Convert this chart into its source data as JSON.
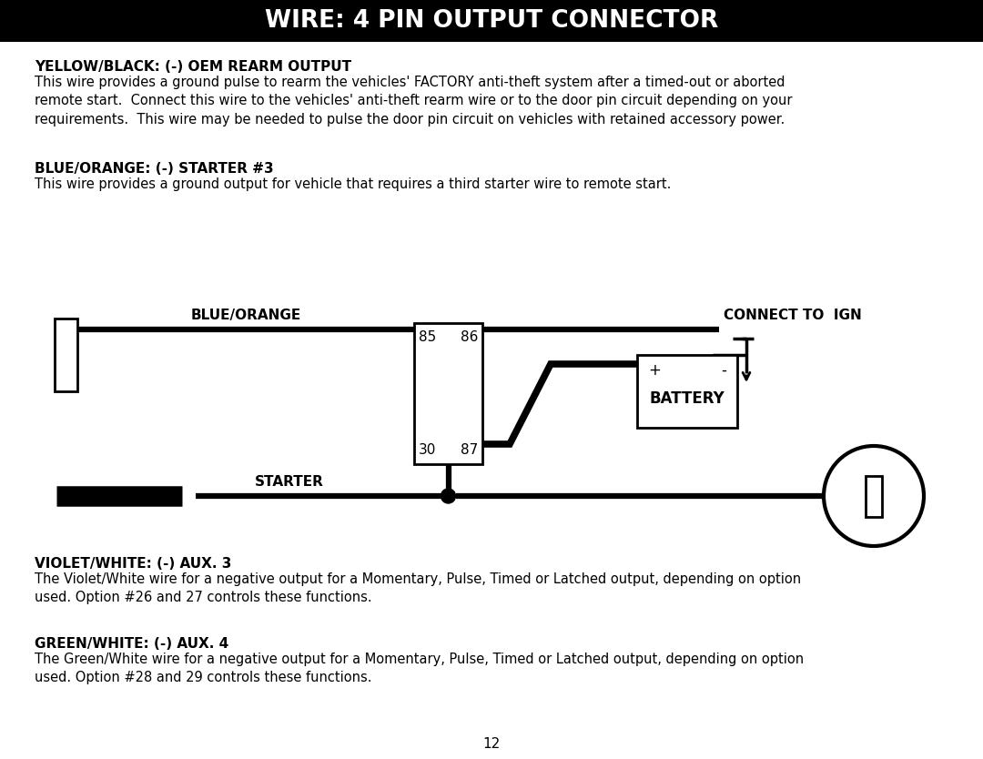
{
  "title": "WIRE: 4 PIN OUTPUT CONNECTOR",
  "title_bg": "#000000",
  "title_fg": "#ffffff",
  "page_bg": "#ffffff",
  "page_number": "12",
  "sections": [
    {
      "heading": "YELLOW/BLACK: (-) OEM REARM OUTPUT",
      "body": "This wire provides a ground pulse to rearm the vehicles' FACTORY anti-theft system after a timed-out or aborted\nremote start.  Connect this wire to the vehicles' anti-theft rearm wire or to the door pin circuit depending on your\nrequirements.  This wire may be needed to pulse the door pin circuit on vehicles with retained accessory power."
    },
    {
      "heading": "BLUE/ORANGE: (-) STARTER #3",
      "body": "This wire provides a ground output for vehicle that requires a third starter wire to remote start."
    },
    {
      "heading": "VIOLET/WHITE: (-) AUX. 3",
      "body": "The Violet/White wire for a negative output for a Momentary, Pulse, Timed or Latched output, depending on option\nused. Option #26 and 27 controls these functions."
    },
    {
      "heading": "GREEN/WHITE: (-) AUX. 4",
      "body": "The Green/White wire for a negative output for a Momentary, Pulse, Timed or Latched output, depending on option\nused. Option #28 and 29 controls these functions."
    }
  ]
}
